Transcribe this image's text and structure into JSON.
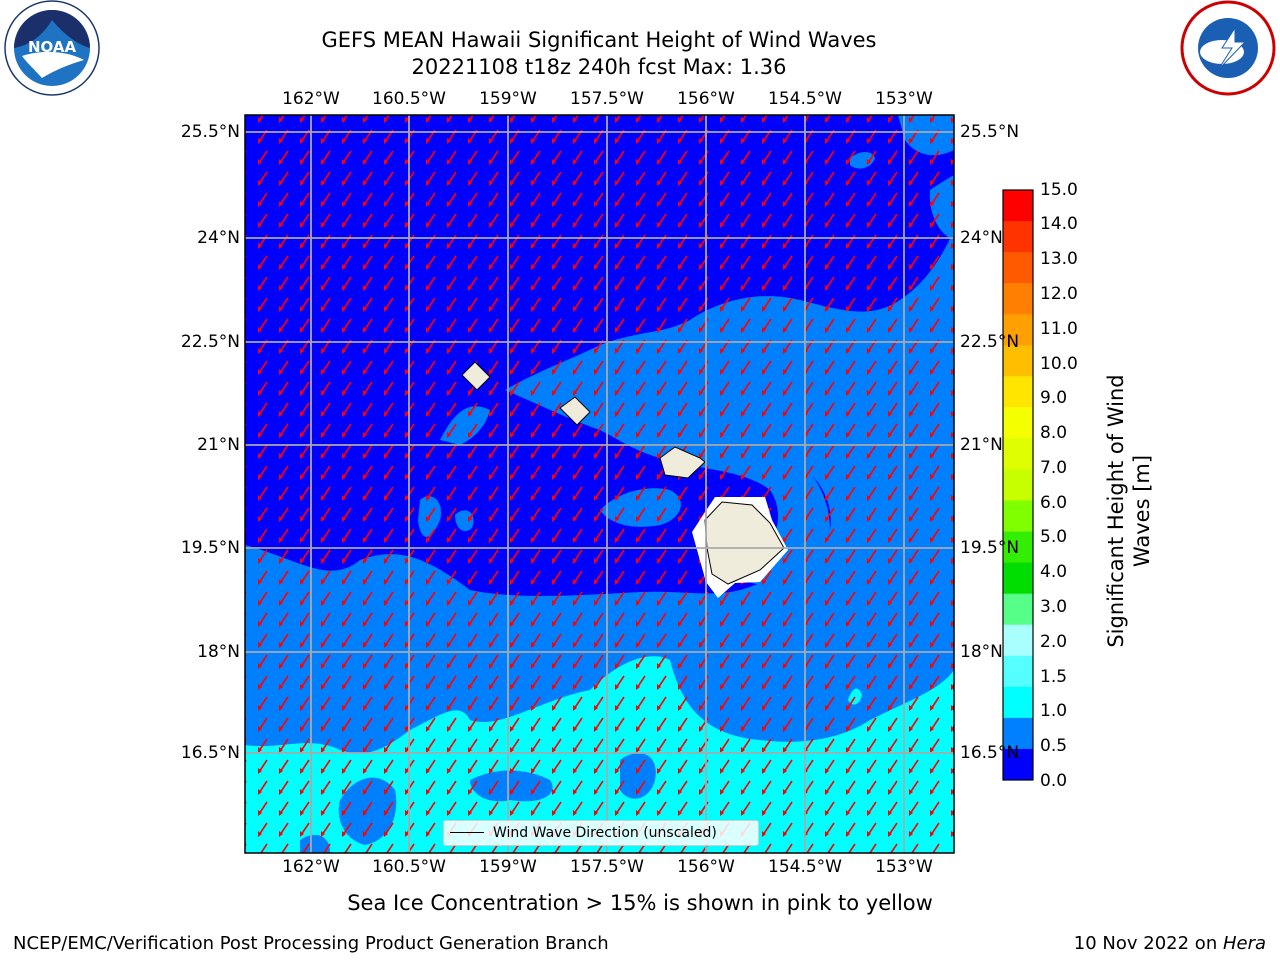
{
  "title": {
    "line1": "GEFS MEAN Hawaii Significant Height of Wind Waves",
    "line2": "20221108 t18z 240h fcst   Max: 1.36"
  },
  "logos": {
    "left": {
      "name": "noaa-logo",
      "text": "NOAA",
      "ring_text": "NATIONAL OCEANIC AND ATMOSPHERIC ADMINISTRATION · U.S. DEPARTMENT OF COMMERCE"
    },
    "right": {
      "name": "nws-logo",
      "ring_text": "NATIONAL WEATHER SERVICE"
    }
  },
  "map": {
    "lon_ticks": [
      "162°W",
      "160.5°W",
      "159°W",
      "157.5°W",
      "156°W",
      "154.5°W",
      "153°W"
    ],
    "lat_ticks": [
      "25.5°N",
      "24°N",
      "22.5°N",
      "21°N",
      "19.5°N",
      "18°N",
      "16.5°N"
    ],
    "legend_label": "Wind Wave Direction (unscaled)",
    "land_color": "#efecdc",
    "arrow_color": "#ff0000",
    "grid": true
  },
  "colorbar": {
    "label": "Significant Height of Wind Waves [m]",
    "ticks": [
      "15.0",
      "14.0",
      "13.0",
      "12.0",
      "11.0",
      "10.0",
      "9.0",
      "8.0",
      "7.0",
      "6.0",
      "5.0",
      "4.0",
      "3.0",
      "2.0",
      "1.5",
      "1.0",
      "0.5",
      "0.0"
    ],
    "colors_top_to_bottom": [
      "#ff0000",
      "#ff3300",
      "#ff5a00",
      "#ff7f00",
      "#ff9f00",
      "#ffbf00",
      "#ffe600",
      "#f4ff00",
      "#dfff00",
      "#c8ff00",
      "#7fff00",
      "#33ee00",
      "#00dd00",
      "#55ff88",
      "#aaffff",
      "#55ffff",
      "#00ffff",
      "#0080ff",
      "#0000ff"
    ]
  },
  "sea_ice_note": "Sea Ice Concentration > 15% is shown in pink to yellow",
  "footer": {
    "left": "NCEP/EMC/Verification Post Processing Product Generation Branch",
    "right_date": "10 Nov 2022 on ",
    "right_host": "Hera"
  }
}
